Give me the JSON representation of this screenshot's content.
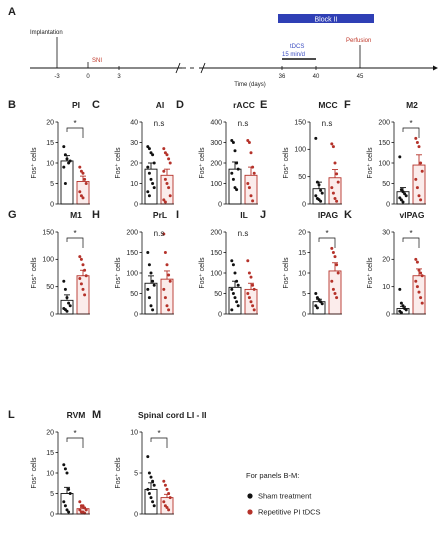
{
  "timeline": {
    "panel_label": "A",
    "events": {
      "implantation": "Implantation",
      "sni": "SNI",
      "tdcs_line1": "tDCS",
      "tdcs_line2": "15 min/d",
      "perfusion": "Perfusion"
    },
    "block_label": "Block II",
    "axis_label": "Time (days)",
    "ticks": [
      "-3",
      "0",
      "3",
      "36",
      "40",
      "45"
    ]
  },
  "legend": {
    "heading": "For panels B-M:",
    "items": [
      "Sham treatment",
      "Repetitive PI tDCS"
    ]
  },
  "colors": {
    "sham": "#111111",
    "tdcs": "#b5322a",
    "block": "#2f3fb5",
    "event": "#c0392b",
    "tdcs_text": "#3a4cc0"
  },
  "chart_data": [
    {
      "label": "B",
      "type": "bar",
      "title": "PI",
      "ylabel": "Fos⁺ cells",
      "ylim": [
        0,
        20
      ],
      "yticks": [
        "0",
        "5",
        "10",
        "15",
        "20"
      ],
      "categories": [
        "Sham treatment",
        "Repetitive PI tDCS"
      ],
      "means": [
        10.5,
        5.5
      ],
      "sem": [
        1.3,
        1.3
      ],
      "points": [
        [
          14,
          12,
          11,
          10,
          10.5,
          9,
          5
        ],
        [
          9,
          8,
          7.5,
          6,
          5,
          3,
          2,
          1.5
        ]
      ],
      "annotation": "*"
    },
    {
      "label": "C",
      "type": "bar",
      "title": "AI",
      "ylabel": "Fos⁺ cells",
      "ylim": [
        0,
        40
      ],
      "yticks": [
        "0",
        "10",
        "20",
        "30",
        "40"
      ],
      "categories": [
        "Sham treatment",
        "Repetitive PI tDCS"
      ],
      "means": [
        17,
        14
      ],
      "sem": [
        3,
        3
      ],
      "points": [
        [
          28,
          27,
          25,
          24,
          20,
          18,
          15,
          12,
          10,
          8,
          6,
          4
        ],
        [
          27,
          25,
          24,
          22,
          20,
          16,
          12,
          10,
          8,
          4,
          2,
          1
        ]
      ],
      "annotation": "n.s"
    },
    {
      "label": "D",
      "type": "bar",
      "title": "rACC",
      "ylabel": "Fos⁺ cells",
      "ylim": [
        0,
        400
      ],
      "yticks": [
        "0",
        "100",
        "200",
        "300",
        "400"
      ],
      "categories": [
        "Sham treatment",
        "Repetitive PI tDCS"
      ],
      "means": [
        170,
        140
      ],
      "sem": [
        35,
        40
      ],
      "points": [
        [
          310,
          300,
          260,
          200,
          170,
          150,
          120,
          80,
          70
        ],
        [
          310,
          300,
          250,
          180,
          150,
          100,
          80,
          40,
          15
        ]
      ],
      "annotation": "n.s"
    },
    {
      "label": "E",
      "type": "bar",
      "title": "MCC",
      "ylabel": "Fos⁺ cells",
      "ylim": [
        0,
        150
      ],
      "yticks": [
        "0",
        "50",
        "100",
        "150"
      ],
      "categories": [
        "Sham treatment",
        "Repetitive PI tDCS"
      ],
      "means": [
        28,
        48
      ],
      "sem": [
        12,
        15
      ],
      "points": [
        [
          120,
          40,
          35,
          25,
          20,
          15,
          10,
          8,
          5
        ],
        [
          110,
          105,
          75,
          55,
          40,
          30,
          20,
          10,
          5
        ]
      ],
      "annotation": "n.s"
    },
    {
      "label": "F",
      "type": "bar",
      "title": "M2",
      "ylabel": "Fos⁺ cells",
      "ylim": [
        0,
        200
      ],
      "yticks": [
        "0",
        "50",
        "100",
        "150",
        "200"
      ],
      "categories": [
        "Sham treatment",
        "Repetitive PI tDCS"
      ],
      "means": [
        30,
        95
      ],
      "sem": [
        10,
        25
      ],
      "points": [
        [
          115,
          35,
          30,
          25,
          20,
          15,
          10,
          5
        ],
        [
          160,
          150,
          140,
          100,
          80,
          60,
          40,
          20,
          10
        ]
      ],
      "annotation": "*"
    },
    {
      "label": "G",
      "type": "bar",
      "title": "M1",
      "ylabel": "Fos⁺ cells",
      "ylim": [
        0,
        150
      ],
      "yticks": [
        "0",
        "50",
        "100",
        "150"
      ],
      "categories": [
        "Sham treatment",
        "Repetitive PI tDCS"
      ],
      "means": [
        25,
        70
      ],
      "sem": [
        10,
        10
      ],
      "points": [
        [
          60,
          45,
          30,
          20,
          15,
          10,
          8,
          5
        ],
        [
          105,
          100,
          90,
          80,
          70,
          65,
          55,
          45,
          35
        ]
      ],
      "annotation": "*"
    },
    {
      "label": "H",
      "type": "bar",
      "title": "PrL",
      "ylabel": "Fos⁺ cells",
      "ylim": [
        0,
        200
      ],
      "yticks": [
        "0",
        "50",
        "100",
        "150",
        "200"
      ],
      "categories": [
        "Sham treatment",
        "Repetitive PI tDCS"
      ],
      "means": [
        75,
        85
      ],
      "sem": [
        18,
        20
      ],
      "points": [
        [
          150,
          120,
          100,
          80,
          70,
          60,
          40,
          20,
          10
        ],
        [
          195,
          150,
          120,
          95,
          80,
          60,
          40,
          20,
          10
        ]
      ],
      "annotation": "n.s"
    },
    {
      "label": "I",
      "type": "bar",
      "title": "IL",
      "ylabel": "Fos⁺ cells",
      "ylim": [
        0,
        200
      ],
      "yticks": [
        "0",
        "50",
        "100",
        "150",
        "200"
      ],
      "categories": [
        "Sham treatment",
        "Repetitive PI tDCS"
      ],
      "means": [
        65,
        60
      ],
      "sem": [
        15,
        15
      ],
      "points": [
        [
          130,
          120,
          100,
          80,
          70,
          60,
          50,
          40,
          30,
          20,
          10
        ],
        [
          130,
          100,
          90,
          70,
          60,
          50,
          40,
          30,
          20,
          10
        ]
      ],
      "annotation": "n.s"
    },
    {
      "label": "J",
      "type": "bar",
      "title": "lPAG",
      "ylabel": "Fos⁺ cells",
      "ylim": [
        0,
        20
      ],
      "yticks": [
        "0",
        "5",
        "10",
        "15",
        "20"
      ],
      "categories": [
        "Sham treatment",
        "Repetitive PI tDCS"
      ],
      "means": [
        3,
        10.5
      ],
      "sem": [
        0.6,
        2
      ],
      "points": [
        [
          5,
          4,
          3.5,
          3,
          2.5,
          2,
          1.5
        ],
        [
          16,
          15,
          14,
          12,
          10,
          8,
          6,
          5,
          4
        ]
      ],
      "annotation": "*"
    },
    {
      "label": "K",
      "type": "bar",
      "title": "vlPAG",
      "ylabel": "Fos⁺ cells",
      "ylim": [
        0,
        30
      ],
      "yticks": [
        "0",
        "10",
        "20",
        "30"
      ],
      "categories": [
        "Sham treatment",
        "Repetitive PI tDCS"
      ],
      "means": [
        2,
        14
      ],
      "sem": [
        0.8,
        2.5
      ],
      "points": [
        [
          9,
          4,
          3,
          2,
          1.5,
          1,
          0.5
        ],
        [
          20,
          19,
          16,
          15,
          14,
          12,
          10,
          8,
          6,
          4
        ]
      ],
      "annotation": "*"
    },
    {
      "label": "L",
      "type": "bar",
      "title": "RVM",
      "ylabel": "Fos⁺ cells",
      "ylim": [
        0,
        20
      ],
      "yticks": [
        "0",
        "5",
        "10",
        "15",
        "20"
      ],
      "categories": [
        "Sham treatment",
        "Repetitive PI tDCS"
      ],
      "means": [
        5,
        1.3
      ],
      "sem": [
        1.5,
        0.3
      ],
      "points": [
        [
          12,
          11,
          10,
          6,
          5,
          3,
          2,
          1,
          0.5
        ],
        [
          3,
          2,
          2,
          1.5,
          1,
          1,
          0.5,
          0.5,
          0.2
        ]
      ],
      "annotation": "*"
    },
    {
      "label": "M",
      "type": "bar",
      "title": "Spinal cord LI - II",
      "ylabel": "Fos⁺ cells",
      "ylim": [
        0,
        10
      ],
      "yticks": [
        "0",
        "5",
        "10"
      ],
      "categories": [
        "Sham treatment",
        "Repetitive PI tDCS"
      ],
      "means": [
        3,
        2
      ],
      "sem": [
        0.8,
        0.4
      ],
      "points": [
        [
          7,
          5,
          4.5,
          4,
          3.5,
          3,
          2.5,
          2,
          1.5,
          1
        ],
        [
          4,
          3.5,
          3,
          2.5,
          2,
          1.5,
          1,
          0.8,
          0.5
        ]
      ],
      "annotation": "*"
    }
  ]
}
